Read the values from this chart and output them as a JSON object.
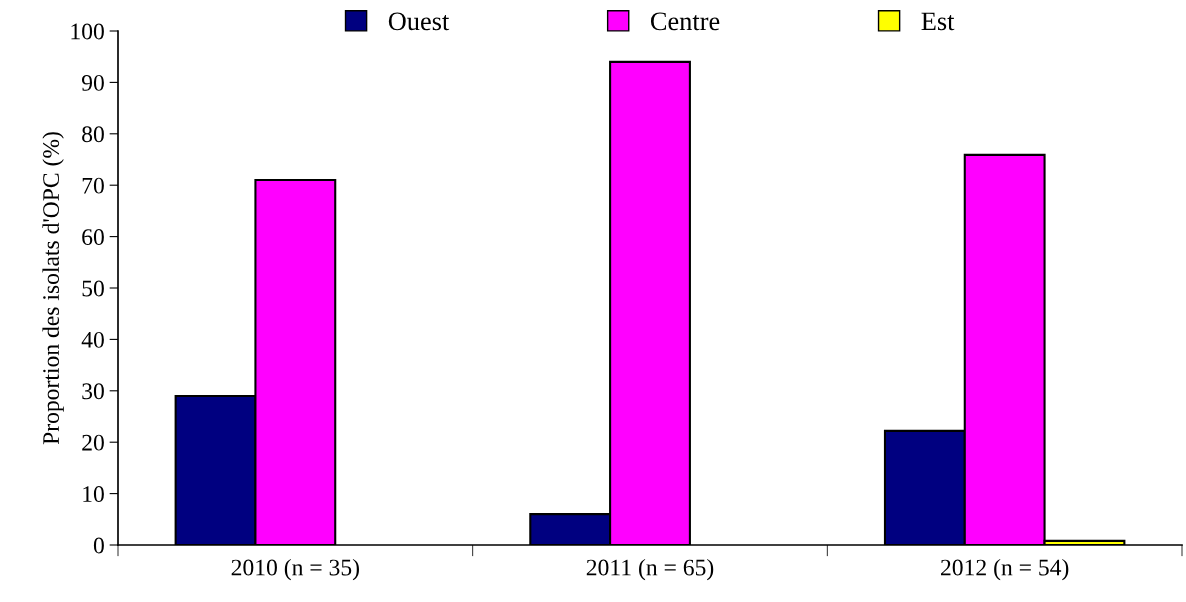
{
  "chart_data": {
    "type": "bar",
    "ylabel": "Proportion des isolats d'OPC (%)",
    "categories": [
      "2010 (n = 35)",
      "2011 (n = 65)",
      "2012 (n = 54)"
    ],
    "series": [
      {
        "name": "Ouest",
        "color": "#000080",
        "values": [
          29,
          6,
          22.2
        ]
      },
      {
        "name": "Centre",
        "color": "#ff00ff",
        "values": [
          71,
          94,
          75.9
        ]
      },
      {
        "name": "Est",
        "color": "#ffff00",
        "values": [
          null,
          null,
          0.8
        ]
      }
    ],
    "ylim": [
      0,
      100
    ],
    "yticks": [
      0,
      10,
      20,
      30,
      40,
      50,
      60,
      70,
      80,
      90,
      100
    ],
    "grid": false,
    "legend": "top"
  }
}
